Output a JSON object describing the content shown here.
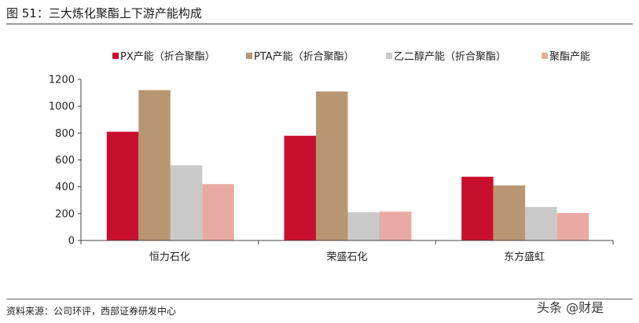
{
  "figure": {
    "title": "图 51：三大炼化聚酯上下游产能构成",
    "source": "资料来源：公司环评，西部证券研发中心",
    "watermark": "头条 @财是"
  },
  "chart_data": {
    "type": "bar",
    "categories": [
      "恒力石化",
      "荣盛石化",
      "东方盛虹"
    ],
    "series": [
      {
        "name": "PX产能（折合聚酯）",
        "color": "#c8102e",
        "values": [
          810,
          780,
          475
        ]
      },
      {
        "name": "PTA产能（折合聚酯）",
        "color": "#b99672",
        "values": [
          1120,
          1110,
          410
        ]
      },
      {
        "name": "乙二醇产能（折合聚酯）",
        "color": "#c9c9c9",
        "values": [
          560,
          210,
          250
        ]
      },
      {
        "name": "聚酯产能",
        "color": "#e8aaa3",
        "values": [
          420,
          215,
          205
        ]
      }
    ],
    "yticks": [
      0,
      200,
      400,
      600,
      800,
      1000,
      1200
    ],
    "ylim": [
      0,
      1200
    ],
    "legend_position": "top",
    "grid": false
  }
}
